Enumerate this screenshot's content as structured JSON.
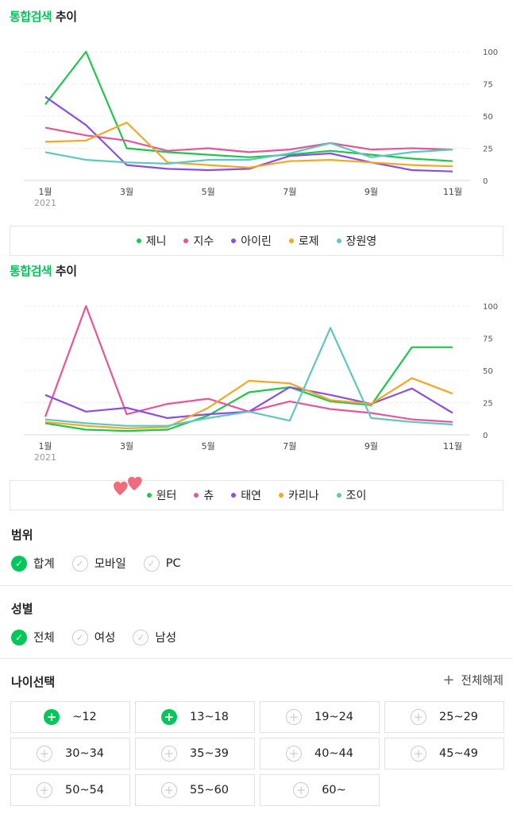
{
  "title1": {
    "green": "통합검색",
    "rest": " 추이"
  },
  "title2": {
    "green": "통합검색",
    "rest": " 추이"
  },
  "chart_data": [
    {
      "type": "line",
      "x": [
        "1월",
        "2월",
        "3월",
        "4월",
        "5월",
        "6월",
        "7월",
        "8월",
        "9월",
        "10월",
        "11월"
      ],
      "xticks": [
        "1월",
        "3월",
        "5월",
        "7월",
        "9월",
        "11월"
      ],
      "year_label": "2021",
      "yticks": [
        0,
        25,
        50,
        75,
        100
      ],
      "ylim": [
        0,
        100
      ],
      "grid": true,
      "series": [
        {
          "name": "제니",
          "color": "#1ec74a",
          "values": [
            59,
            100,
            25,
            22,
            20,
            18,
            20,
            23,
            20,
            17,
            15
          ]
        },
        {
          "name": "지수",
          "color": "#e6559a",
          "values": [
            41,
            35,
            31,
            23,
            25,
            22,
            24,
            29,
            24,
            25,
            24
          ]
        },
        {
          "name": "아이린",
          "color": "#8b4fe0",
          "values": [
            65,
            43,
            12,
            9,
            8,
            9,
            19,
            21,
            14,
            8,
            7
          ]
        },
        {
          "name": "로제",
          "color": "#f5a623",
          "values": [
            30,
            31,
            45,
            14,
            12,
            10,
            15,
            16,
            14,
            12,
            11
          ]
        },
        {
          "name": "장원영",
          "color": "#5ec8c0",
          "values": [
            22,
            16,
            14,
            13,
            16,
            16,
            21,
            29,
            18,
            22,
            24
          ]
        }
      ]
    },
    {
      "type": "line",
      "x": [
        "1월",
        "2월",
        "3월",
        "4월",
        "5월",
        "6월",
        "7월",
        "8월",
        "9월",
        "10월",
        "11월"
      ],
      "xticks": [
        "1월",
        "3월",
        "5월",
        "7월",
        "9월",
        "11월"
      ],
      "year_label": "2021",
      "yticks": [
        0,
        25,
        50,
        75,
        100
      ],
      "ylim": [
        0,
        100
      ],
      "grid": true,
      "series": [
        {
          "name": "윈터",
          "color": "#1ec74a",
          "values": [
            9,
            4,
            3,
            4,
            15,
            33,
            37,
            26,
            23,
            68,
            68
          ]
        },
        {
          "name": "츄",
          "color": "#e6559a",
          "values": [
            14,
            100,
            16,
            24,
            28,
            18,
            26,
            20,
            17,
            12,
            10
          ]
        },
        {
          "name": "태연",
          "color": "#8b4fe0",
          "values": [
            31,
            18,
            21,
            13,
            16,
            18,
            37,
            31,
            24,
            36,
            17
          ]
        },
        {
          "name": "카리나",
          "color": "#f5a623",
          "values": [
            10,
            7,
            5,
            6,
            21,
            42,
            40,
            27,
            24,
            44,
            32
          ]
        },
        {
          "name": "조이",
          "color": "#5ec8c0",
          "values": [
            12,
            9,
            7,
            7,
            13,
            18,
            11,
            83,
            13,
            10,
            8
          ]
        }
      ]
    }
  ],
  "range": {
    "title": "범위",
    "options": [
      {
        "label": "합계",
        "checked": true
      },
      {
        "label": "모바일",
        "checked": false
      },
      {
        "label": "PC",
        "checked": false
      }
    ]
  },
  "gender": {
    "title": "성별",
    "options": [
      {
        "label": "전체",
        "checked": true
      },
      {
        "label": "여성",
        "checked": false
      },
      {
        "label": "남성",
        "checked": false
      }
    ]
  },
  "age": {
    "title": "나이선택",
    "reset_label": "전체해제",
    "options": [
      {
        "label": "~12",
        "checked": true
      },
      {
        "label": "13~18",
        "checked": true
      },
      {
        "label": "19~24",
        "checked": false
      },
      {
        "label": "25~29",
        "checked": false
      },
      {
        "label": "30~34",
        "checked": false
      },
      {
        "label": "35~39",
        "checked": false
      },
      {
        "label": "40~44",
        "checked": false
      },
      {
        "label": "45~49",
        "checked": false
      },
      {
        "label": "50~54",
        "checked": false
      },
      {
        "label": "55~60",
        "checked": false
      },
      {
        "label": "60~",
        "checked": false
      }
    ]
  }
}
